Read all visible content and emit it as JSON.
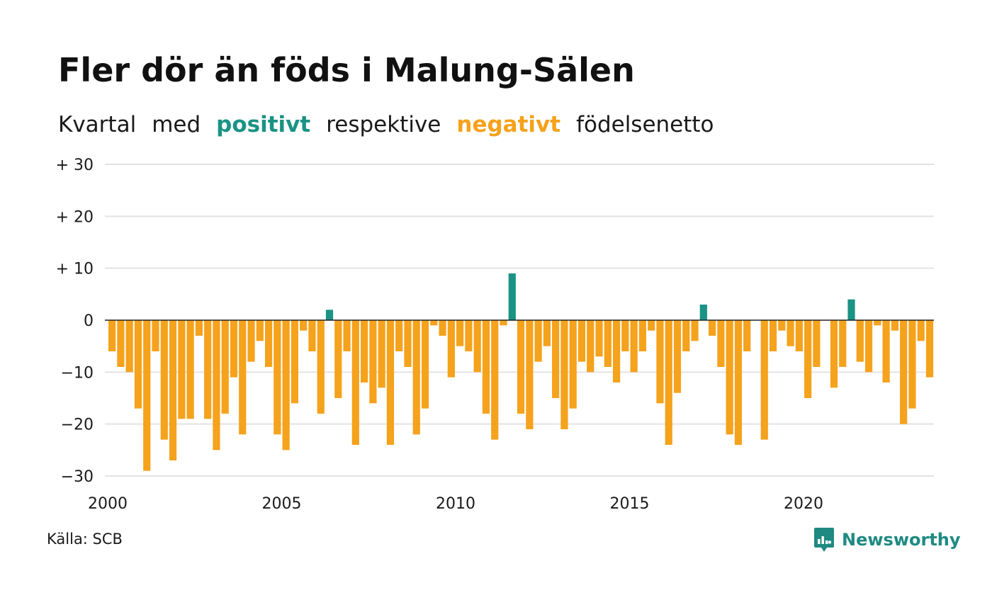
{
  "header": {
    "title": "Fler dör än föds i Malung-Sälen",
    "subtitle": {
      "part1": "Kvartal",
      "part2": "med",
      "positive": "positivt",
      "part3": "respektive",
      "negative": "negativt",
      "part4": "födelsenetto"
    }
  },
  "footer": {
    "source": "Källa: SCB",
    "brand": "Newsworthy",
    "brand_icon": "newsworthy-logo-icon"
  },
  "colors": {
    "positive": "#1a9385",
    "negative": "#f5a21c",
    "grid": "#e3e3e3",
    "zero_line": "#222222",
    "brand": "#1f8a82"
  },
  "chart_data": {
    "type": "bar",
    "title": "Fler dör än föds i Malung-Sälen",
    "xlabel": "",
    "ylabel": "",
    "x_start_year": 2000,
    "periods_per_year": 4,
    "ylim": [
      -30,
      30
    ],
    "y_ticks": [
      30,
      20,
      10,
      0,
      -10,
      -20,
      -30
    ],
    "y_tick_labels": [
      "+ 30",
      "+ 20",
      "+ 10",
      "0",
      "−10",
      "−20",
      "−30"
    ],
    "x_ticks": [
      2000,
      2005,
      2010,
      2015,
      2020
    ],
    "x_tick_labels": [
      "2000",
      "2005",
      "2010",
      "2015",
      "2020"
    ],
    "grid": true,
    "legend": "none",
    "values": [
      -6,
      -9,
      -10,
      -17,
      -29,
      -6,
      -23,
      -27,
      -19,
      -19,
      -3,
      -19,
      -25,
      -18,
      -11,
      -22,
      -8,
      -4,
      -9,
      -22,
      -25,
      -16,
      -2,
      -6,
      -18,
      2,
      -15,
      -6,
      -24,
      -12,
      -16,
      -13,
      -24,
      -6,
      -9,
      -22,
      -17,
      -1,
      -3,
      -11,
      -5,
      -6,
      -10,
      -18,
      -23,
      -1,
      9,
      -18,
      -21,
      -8,
      -5,
      -15,
      -21,
      -17,
      -8,
      -10,
      -7,
      -9,
      -12,
      -6,
      -10,
      -6,
      -2,
      -16,
      -24,
      -14,
      -6,
      -4,
      3,
      -3,
      -9,
      -22,
      -24,
      -6,
      0,
      -23,
      -6,
      -2,
      -5,
      -6,
      -15,
      -9,
      0,
      -13,
      -9,
      4,
      -8,
      -10,
      -1,
      -12,
      -2,
      -20,
      -17,
      -4,
      -11
    ]
  }
}
